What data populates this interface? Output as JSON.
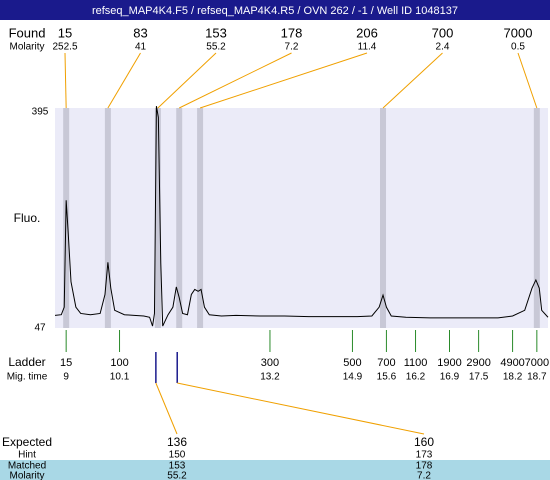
{
  "chart_data": {
    "type": "line",
    "title": "refseq_MAP4K4.F5 / refseq_MAP4K4.R5 / OVN 262 / -1 / Well ID 1048137",
    "ylabel": "Fluo.",
    "ylim": [
      47,
      395
    ],
    "yticks": [
      47,
      395
    ],
    "xlim": [
      8.77,
      18.93
    ],
    "color": "#000000",
    "x": [
      8.77,
      8.9,
      8.96,
      9.0,
      9.04,
      9.1,
      9.2,
      9.3,
      9.5,
      9.7,
      9.8,
      9.86,
      9.92,
      10.0,
      10.2,
      10.4,
      10.6,
      10.72,
      10.78,
      10.82,
      10.86,
      10.9,
      10.95,
      10.99,
      11.05,
      11.1,
      11.2,
      11.27,
      11.33,
      11.4,
      11.5,
      11.58,
      11.65,
      11.72,
      11.78,
      11.85,
      11.95,
      12.2,
      12.5,
      13.0,
      13.5,
      14.0,
      14.5,
      15.0,
      15.3,
      15.45,
      15.53,
      15.6,
      15.7,
      16.0,
      16.5,
      17.0,
      17.5,
      17.9,
      18.2,
      18.45,
      18.6,
      18.68,
      18.75,
      18.8,
      18.93
    ],
    "values": [
      67,
      68,
      80,
      249,
      200,
      120,
      80,
      70,
      68,
      70,
      100,
      151,
      110,
      75,
      68,
      67,
      66,
      64,
      50,
      70,
      398,
      380,
      150,
      50,
      60,
      68,
      80,
      112,
      95,
      70,
      68,
      100,
      108,
      105,
      108,
      80,
      68,
      66,
      67,
      66,
      66,
      65,
      65,
      65,
      66,
      80,
      99,
      80,
      66,
      64,
      63,
      63,
      63,
      63,
      66,
      75,
      110,
      123,
      110,
      75,
      64
    ],
    "found": {
      "label": "Found",
      "sizes": [
        15,
        83,
        153,
        178,
        206,
        700,
        7000
      ],
      "molarity_label": "Molarity",
      "molarity": [
        252.5,
        41,
        55.2,
        7.2,
        11.4,
        2.4,
        0.5
      ],
      "times": [
        9.0,
        9.86,
        10.89,
        11.33,
        11.76,
        15.53,
        18.7
      ]
    },
    "ladder": {
      "label": "Ladder",
      "sizes": [
        15,
        100,
        300,
        500,
        700,
        1100,
        1900,
        2900,
        4900,
        7000
      ],
      "time_label": "Mig. time",
      "times": [
        9,
        10.1,
        13.2,
        14.9,
        15.6,
        16.2,
        16.9,
        17.5,
        18.2,
        18.7
      ]
    },
    "expected": {
      "label": "Expected",
      "values": [
        136,
        160
      ],
      "hint_label": "Hint",
      "hint": [
        150,
        173
      ],
      "matched_label": "Matched",
      "matched": [
        153,
        178
      ],
      "molarity_label": "Molarity",
      "molarity": [
        55.2,
        7.2
      ]
    }
  }
}
